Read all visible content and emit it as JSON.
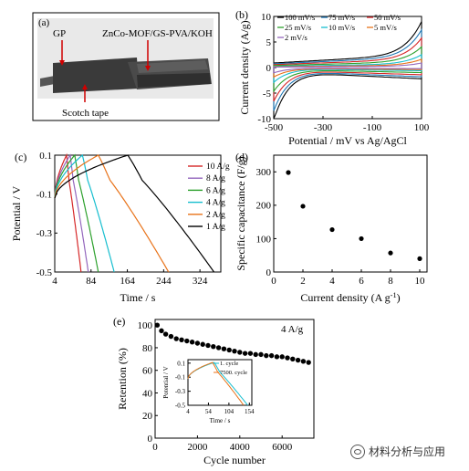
{
  "panel_a": {
    "panel_label": "(a)",
    "label_gp": "GP",
    "label_mof": "ZnCo-MOF/GS-PVA/KOH",
    "label_tape": "Scotch tape"
  },
  "watermark": {
    "text": "材料分析与应用",
    "icon": "wechat-icon"
  },
  "chart_data": [
    {
      "panel": "(b)",
      "type": "line",
      "xlabel": "Potential / mV vs Ag/AgCl",
      "ylabel": "Current density (A/g)",
      "xlim": [
        -500,
        100
      ],
      "ylim": [
        -10,
        10
      ],
      "xticks": [
        -500,
        -300,
        -100,
        100
      ],
      "yticks": [
        -10,
        -5,
        0,
        5,
        10
      ],
      "legend_position": "top",
      "series": [
        {
          "name": "100 mV/s",
          "color": "#000000",
          "scale": 1.0
        },
        {
          "name": "75 mV/s",
          "color": "#1f77b4",
          "scale": 0.82
        },
        {
          "name": "50 mV/s",
          "color": "#d62728",
          "scale": 0.64
        },
        {
          "name": "25 mV/s",
          "color": "#2ca02c",
          "scale": 0.45
        },
        {
          "name": "10 mV/s",
          "color": "#17becf",
          "scale": 0.28
        },
        {
          "name": "5 mV/s",
          "color": "#e8731a",
          "scale": 0.18
        },
        {
          "name": "2 mV/s",
          "color": "#9467bd",
          "scale": 0.1
        }
      ]
    },
    {
      "panel": "(c)",
      "type": "line",
      "xlabel": "Time / s",
      "ylabel": "Potential / V",
      "xlim": [
        4,
        370
      ],
      "ylim": [
        -0.5,
        0.1
      ],
      "xticks": [
        4,
        84,
        164,
        244,
        324
      ],
      "yticks": [
        -0.5,
        -0.3,
        -0.1,
        0.1
      ],
      "ytick_labels": [
        "-0.5",
        "-0.3",
        "-0.1",
        "0.1"
      ],
      "legend_position": "right",
      "series": [
        {
          "name": "10 A/g",
          "color": "#d62728",
          "peak": 30,
          "end": 62
        },
        {
          "name": "8 A/g",
          "color": "#9467bd",
          "peak": 38,
          "end": 78
        },
        {
          "name": "6 A/g",
          "color": "#2ca02c",
          "peak": 48,
          "end": 100
        },
        {
          "name": "4 A/g",
          "color": "#17becf",
          "peak": 65,
          "end": 135
        },
        {
          "name": "2 A/g",
          "color": "#e8731a",
          "peak": 100,
          "end": 255
        },
        {
          "name": "1 A/g",
          "color": "#000000",
          "peak": 165,
          "end": 355
        }
      ]
    },
    {
      "panel": "(d)",
      "type": "scatter",
      "xlabel": "Current density (A g",
      "xlabel_sup": "-1",
      "xlabel_suffix": ")",
      "ylabel": "Specific capacitance (F/g)",
      "xlim": [
        0,
        10.5
      ],
      "ylim": [
        0,
        350
      ],
      "xticks": [
        0,
        2,
        4,
        6,
        8,
        10
      ],
      "yticks": [
        0,
        100,
        200,
        300
      ],
      "x": [
        1,
        2,
        4,
        6,
        8,
        10
      ],
      "y": [
        298,
        197,
        127,
        100,
        57,
        40
      ]
    },
    {
      "panel": "(e)",
      "type": "scatter",
      "annotation": "4 A/g",
      "xlabel": "Cycle number",
      "ylabel": "Retention (%)",
      "xlim": [
        0,
        7500
      ],
      "ylim": [
        0,
        105
      ],
      "xticks": [
        0,
        2000,
        4000,
        6000
      ],
      "yticks": [
        0,
        20,
        40,
        60,
        80,
        100
      ],
      "x": [
        100,
        300,
        500,
        750,
        1000,
        1250,
        1500,
        1750,
        2000,
        2250,
        2500,
        2750,
        3000,
        3250,
        3500,
        3750,
        4000,
        4250,
        4500,
        4750,
        5000,
        5250,
        5500,
        5750,
        6000,
        6250,
        6500,
        6750,
        7000,
        7250
      ],
      "y": [
        100,
        95,
        92,
        90,
        88,
        87,
        86,
        85,
        84,
        83,
        82,
        81,
        80,
        79,
        78,
        77,
        76,
        75,
        75,
        74,
        74,
        73,
        73,
        72,
        72,
        71,
        70,
        69,
        68,
        67
      ]
    },
    {
      "panel": "(e) inset",
      "type": "line",
      "xlabel": "Time / s",
      "ylabel": "Potential / V",
      "xlim": [
        4,
        160
      ],
      "ylim": [
        -0.5,
        0.15
      ],
      "xticks": [
        4,
        54,
        104,
        154
      ],
      "yticks": [
        -0.5,
        -0.3,
        -0.1,
        0.1
      ],
      "ytick_labels": [
        "-0.5",
        "-0.3",
        "-0.1",
        "0.1"
      ],
      "series": [
        {
          "name": "1. cycle",
          "color": "#17becf",
          "peak": 68,
          "end": 150
        },
        {
          "name": "7500. cycle",
          "color": "#e8731a",
          "peak": 64,
          "end": 140
        }
      ]
    }
  ]
}
